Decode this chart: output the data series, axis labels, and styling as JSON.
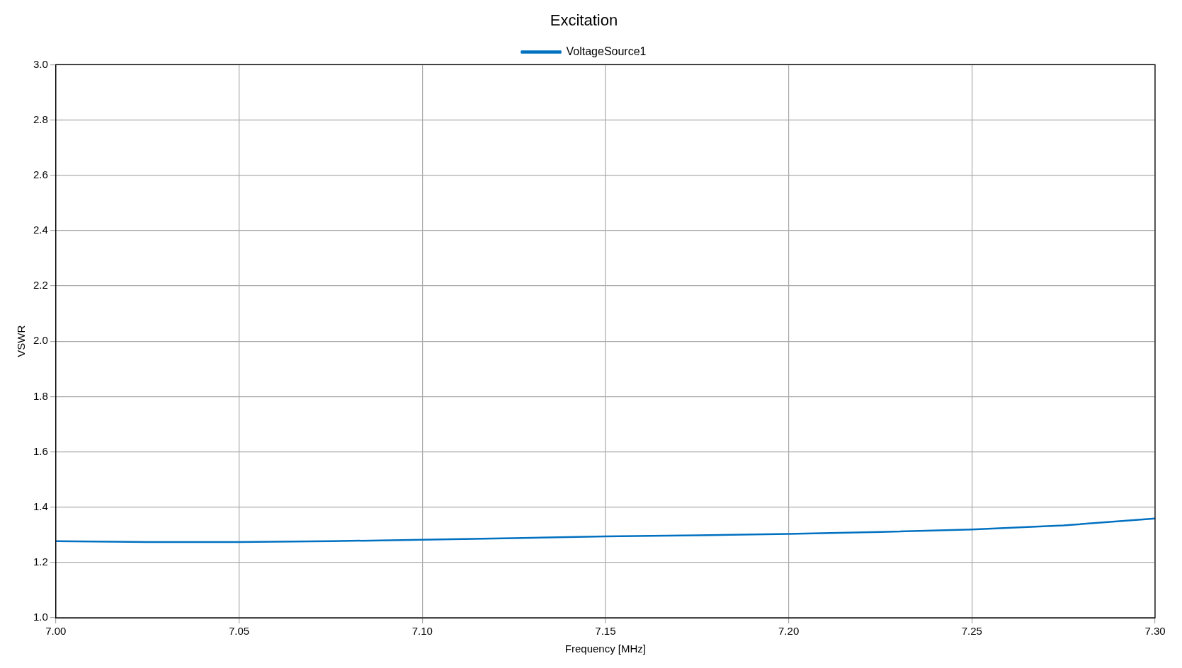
{
  "chart_data": {
    "type": "line",
    "title": "Excitation",
    "xlabel": "Frequency [MHz]",
    "ylabel": "VSWR",
    "x": [
      7.0,
      7.025,
      7.05,
      7.075,
      7.1,
      7.125,
      7.15,
      7.175,
      7.2,
      7.225,
      7.25,
      7.275,
      7.3
    ],
    "series": [
      {
        "name": "VoltageSource1",
        "color": "#0070c0",
        "values": [
          1.277,
          1.274,
          1.274,
          1.277,
          1.282,
          1.288,
          1.294,
          1.298,
          1.303,
          1.31,
          1.319,
          1.334,
          1.359
        ]
      }
    ],
    "xlim": [
      7.0,
      7.3
    ],
    "xticks": [
      {
        "value": 7.0,
        "label": "7.00"
      },
      {
        "value": 7.05,
        "label": "7.05"
      },
      {
        "value": 7.1,
        "label": "7.10"
      },
      {
        "value": 7.15,
        "label": "7.15"
      },
      {
        "value": 7.2,
        "label": "7.20"
      },
      {
        "value": 7.25,
        "label": "7.25"
      },
      {
        "value": 7.3,
        "label": "7.30"
      }
    ],
    "ylim": [
      1.0,
      3.0
    ],
    "yticks": [
      {
        "value": 1.0,
        "label": "1.0"
      },
      {
        "value": 1.2,
        "label": "1.2"
      },
      {
        "value": 1.4,
        "label": "1.4"
      },
      {
        "value": 1.6,
        "label": "1.6"
      },
      {
        "value": 1.8,
        "label": "1.8"
      },
      {
        "value": 2.0,
        "label": "2.0"
      },
      {
        "value": 2.2,
        "label": "2.2"
      },
      {
        "value": 2.4,
        "label": "2.4"
      },
      {
        "value": 2.6,
        "label": "2.6"
      },
      {
        "value": 2.8,
        "label": "2.8"
      },
      {
        "value": 3.0,
        "label": "3.0"
      }
    ],
    "grid": true,
    "legend": "top",
    "marker": "none",
    "line_style": "solid"
  }
}
